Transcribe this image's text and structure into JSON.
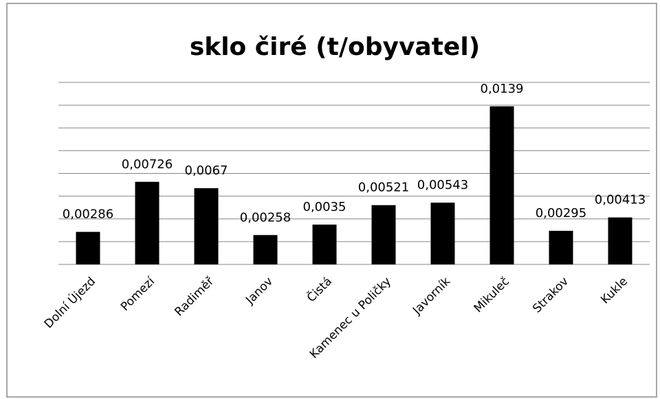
{
  "chart_data": {
    "type": "bar",
    "title": "sklo čiré (t/obyvatel)",
    "categories": [
      "Dolní Újezd",
      "Pomezí",
      "Radiměř",
      "Janov",
      "Čistá",
      "Kamenec u Poličky",
      "Javorník",
      "Mikuleč",
      "Strakov",
      "Kukle"
    ],
    "values": [
      0.00286,
      0.00726,
      0.0067,
      0.00258,
      0.0035,
      0.00521,
      0.00543,
      0.0139,
      0.00295,
      0.00413
    ],
    "value_labels": [
      "0,00286",
      "0,00726",
      "0,0067",
      "0,00258",
      "0,0035",
      "0,00521",
      "0,00543",
      "0,0139",
      "0,00295",
      "0,00413"
    ],
    "color": "#000000",
    "ylim": [
      0,
      0.016
    ],
    "yticks": [
      0,
      0.002,
      0.004,
      0.006,
      0.008,
      0.01,
      0.012,
      0.014,
      0.016
    ],
    "grid": true
  }
}
